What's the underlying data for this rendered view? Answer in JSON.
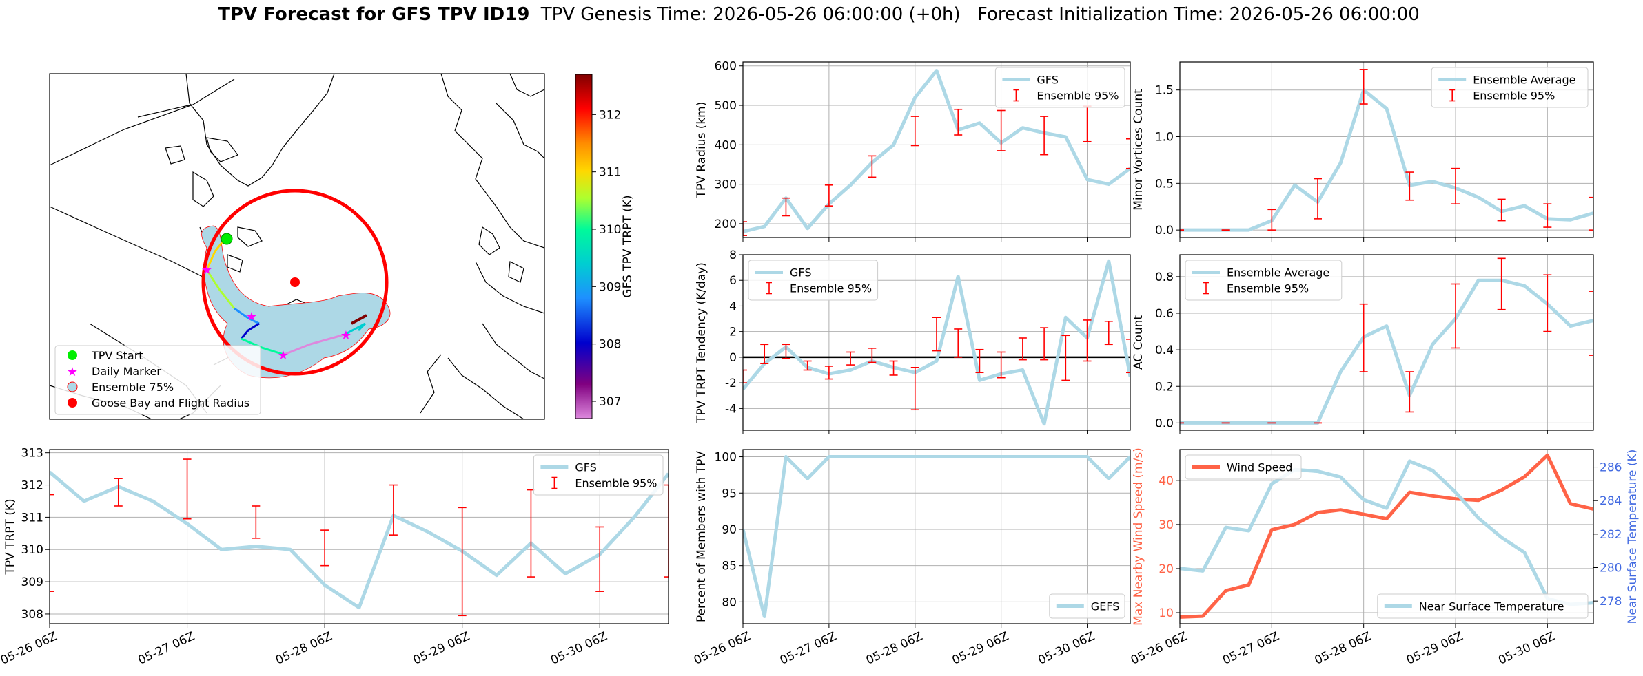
{
  "header": {
    "title_bold": "TPV Forecast for GFS TPV ID19",
    "genesis": "TPV Genesis Time: 2026-05-26 06:00:00 (+0h)",
    "init": "Forecast Initialization Time: 2026-05-26 06:00:00"
  },
  "colors": {
    "series": "#add8e6",
    "errorbar": "#ff0000",
    "wind": "#ff6347",
    "temp_axis": "#4169e1",
    "zero_line": "#000000"
  },
  "time_ticks": [
    "05-26 06Z",
    "05-27 06Z",
    "05-28 06Z",
    "05-29 06Z",
    "05-30 06Z"
  ],
  "map": {
    "colorbar_label": "GFS TPV TRPT (K)",
    "colorbar_ticks": [
      "307",
      "308",
      "309",
      "310",
      "311",
      "312"
    ],
    "colorbar_range": [
      306.7,
      312.7
    ],
    "legend": [
      {
        "label": "TPV Start",
        "symbol": "circle",
        "color": "#00ee00"
      },
      {
        "label": "Daily Marker",
        "symbol": "star",
        "color": "#ff00ff"
      },
      {
        "label": "Ensemble 75%",
        "symbol": "circle-outline",
        "color": "#add8e6"
      },
      {
        "label": "Goose Bay and Flight Radius",
        "symbol": "circle",
        "color": "#ff0000"
      }
    ]
  },
  "chart_data": [
    {
      "id": "radius",
      "type": "line",
      "ylabel": "TPV Radius (km)",
      "ylim": [
        165,
        610
      ],
      "yticks": [
        200,
        300,
        400,
        500,
        600
      ],
      "grid": true,
      "legend_position": "top-right",
      "series": [
        {
          "name": "GFS",
          "kind": "line",
          "values": [
            180,
            193,
            265,
            188,
            250,
            298,
            355,
            400,
            520,
            588,
            438,
            455,
            405,
            443,
            430,
            420,
            312,
            300,
            340
          ]
        },
        {
          "name": "Ensemble 95%",
          "kind": "errorbar",
          "points": [
            [
              0,
              170,
              205
            ],
            [
              2,
              220,
              265
            ],
            [
              4,
              245,
              298
            ],
            [
              6,
              318,
              372
            ],
            [
              8,
              398,
              472
            ],
            [
              10,
              425,
              490
            ],
            [
              12,
              385,
              487
            ],
            [
              14,
              375,
              472
            ],
            [
              16,
              408,
              498
            ],
            [
              18,
              340,
              415
            ]
          ]
        }
      ]
    },
    {
      "id": "tendency",
      "type": "line",
      "ylabel": "TPV TRPT Tendency (K/day)",
      "ylim": [
        -5.7,
        8
      ],
      "yticks": [
        -4,
        -2,
        0,
        2,
        4,
        6,
        8
      ],
      "grid": true,
      "zero_line": true,
      "legend_position": "top-left",
      "series": [
        {
          "name": "GFS",
          "kind": "line",
          "values": [
            -2.5,
            -0.5,
            0.8,
            -0.8,
            -1.3,
            -1.0,
            -0.3,
            -0.8,
            -1.2,
            -0.3,
            6.3,
            -1.8,
            -1.3,
            -1.0,
            -5.2,
            3.1,
            1.5,
            7.5,
            -1.5
          ]
        },
        {
          "name": "Ensemble 95%",
          "kind": "errorbar",
          "points": [
            [
              0,
              -2.0,
              -1.0
            ],
            [
              1,
              -0.5,
              1.0
            ],
            [
              2,
              -0.1,
              1.0
            ],
            [
              3,
              -1.0,
              -0.3
            ],
            [
              4,
              -1.7,
              -0.7
            ],
            [
              5,
              -0.6,
              0.4
            ],
            [
              6,
              -0.4,
              0.7
            ],
            [
              7,
              -1.4,
              -0.3
            ],
            [
              8,
              -4.1,
              -0.8
            ],
            [
              9,
              0.5,
              3.1
            ],
            [
              10,
              0.0,
              2.2
            ],
            [
              11,
              -1.2,
              0.6
            ],
            [
              12,
              -1.6,
              0.4
            ],
            [
              13,
              -0.2,
              1.5
            ],
            [
              14,
              -0.2,
              2.3
            ],
            [
              15,
              -1.8,
              1.7
            ],
            [
              16,
              -0.3,
              2.9
            ],
            [
              17,
              1.0,
              2.8
            ],
            [
              18,
              -1.2,
              1.4
            ]
          ]
        }
      ]
    },
    {
      "id": "members",
      "type": "line",
      "ylabel": "Percent of Members with TPV",
      "ylim": [
        77,
        101
      ],
      "yticks": [
        80,
        85,
        90,
        95,
        100
      ],
      "grid": true,
      "legend_position": "bottom-right",
      "series": [
        {
          "name": "GEFS",
          "kind": "line",
          "values": [
            90,
            78,
            100,
            97,
            100,
            100,
            100,
            100,
            100,
            100,
            100,
            100,
            100,
            100,
            100,
            100,
            100,
            97,
            100
          ]
        }
      ]
    },
    {
      "id": "minor_vortices",
      "type": "line",
      "ylabel": "Minor Vortices Count",
      "ylim": [
        -0.08,
        1.8
      ],
      "yticks": [
        0.0,
        0.5,
        1.0,
        1.5
      ],
      "grid": true,
      "legend_position": "top-right",
      "series": [
        {
          "name": "Ensemble Average",
          "kind": "line",
          "values": [
            0.0,
            0.0,
            0.0,
            0.0,
            0.1,
            0.48,
            0.3,
            0.72,
            1.5,
            1.3,
            0.48,
            0.52,
            0.45,
            0.35,
            0.2,
            0.26,
            0.12,
            0.11,
            0.18
          ]
        },
        {
          "name": "Ensemble 95%",
          "kind": "errorbar",
          "points": [
            [
              0,
              0.0,
              0.0
            ],
            [
              2,
              0.0,
              0.0
            ],
            [
              4,
              0.0,
              0.22
            ],
            [
              6,
              0.12,
              0.55
            ],
            [
              8,
              1.35,
              1.72
            ],
            [
              10,
              0.32,
              0.62
            ],
            [
              12,
              0.28,
              0.66
            ],
            [
              14,
              0.1,
              0.33
            ],
            [
              16,
              0.03,
              0.28
            ],
            [
              18,
              0.0,
              0.35
            ]
          ]
        }
      ]
    },
    {
      "id": "ac_count",
      "type": "line",
      "ylabel": "AC Count",
      "ylim": [
        -0.04,
        0.92
      ],
      "yticks": [
        0.0,
        0.2,
        0.4,
        0.6,
        0.8
      ],
      "grid": true,
      "legend_position": "top-left",
      "series": [
        {
          "name": "Ensemble Average",
          "kind": "line",
          "values": [
            0.0,
            0.0,
            0.0,
            0.0,
            0.0,
            0.0,
            0.0,
            0.28,
            0.47,
            0.53,
            0.15,
            0.43,
            0.57,
            0.78,
            0.78,
            0.75,
            0.65,
            0.53,
            0.56
          ]
        },
        {
          "name": "Ensemble 95%",
          "kind": "errorbar",
          "points": [
            [
              0,
              0.0,
              0.0
            ],
            [
              2,
              0.0,
              0.0
            ],
            [
              4,
              0.0,
              0.0
            ],
            [
              6,
              0.0,
              0.0
            ],
            [
              8,
              0.28,
              0.65
            ],
            [
              10,
              0.06,
              0.28
            ],
            [
              12,
              0.41,
              0.76
            ],
            [
              14,
              0.62,
              0.9
            ],
            [
              16,
              0.5,
              0.81
            ],
            [
              18,
              0.37,
              0.72
            ]
          ]
        }
      ]
    },
    {
      "id": "trpt",
      "type": "line",
      "ylabel": "TPV TRPT (K)",
      "ylim": [
        307.7,
        313.1
      ],
      "yticks": [
        308,
        309,
        310,
        311,
        312,
        313
      ],
      "grid": true,
      "legend_position": "top-right",
      "series": [
        {
          "name": "GFS",
          "kind": "line",
          "values": [
            312.4,
            311.5,
            311.95,
            311.5,
            310.8,
            310.0,
            310.1,
            310.0,
            308.9,
            308.2,
            311.05,
            310.55,
            309.95,
            309.2,
            310.2,
            309.25,
            309.85,
            311.0,
            312.35
          ]
        },
        {
          "name": "Ensemble 95%",
          "kind": "errorbar",
          "points": [
            [
              0,
              308.7,
              311.7
            ],
            [
              2,
              311.35,
              312.2
            ],
            [
              4,
              310.95,
              312.8
            ],
            [
              6,
              310.35,
              311.35
            ],
            [
              8,
              309.5,
              310.6
            ],
            [
              10,
              310.45,
              312.0
            ],
            [
              12,
              307.95,
              311.3
            ],
            [
              14,
              309.15,
              311.85
            ],
            [
              16,
              308.7,
              310.7
            ],
            [
              18,
              309.15,
              312.0
            ]
          ]
        }
      ]
    },
    {
      "id": "wind_temp",
      "type": "line",
      "ylabel": "Max Nearby Wind Speed (m/s)",
      "ylabel_right": "Near Surface Temperature (K)",
      "ylim": [
        7.5,
        47
      ],
      "yticks": [
        10,
        20,
        30,
        40
      ],
      "ylim_right": [
        276.65,
        287.05
      ],
      "yticks_right": [
        278,
        280,
        282,
        284,
        286
      ],
      "grid": true,
      "series": [
        {
          "name": "Wind Speed",
          "axis": "left",
          "kind": "line",
          "values": [
            9.0,
            9.2,
            15.0,
            16.3,
            28.8,
            30.0,
            32.7,
            33.3,
            32.3,
            31.3,
            37.3,
            36.5,
            35.8,
            35.5,
            37.8,
            40.8,
            45.7,
            34.7,
            33.5
          ],
          "legend_position": "top-left"
        },
        {
          "name": "Near Surface Temperature",
          "axis": "right",
          "kind": "line",
          "values": [
            279.95,
            279.8,
            282.4,
            282.2,
            285.0,
            285.85,
            285.75,
            285.4,
            284.05,
            283.55,
            286.35,
            285.8,
            284.5,
            282.95,
            281.8,
            280.9,
            278.15,
            277.8,
            277.9
          ],
          "legend_position": "bottom-right"
        }
      ]
    }
  ]
}
